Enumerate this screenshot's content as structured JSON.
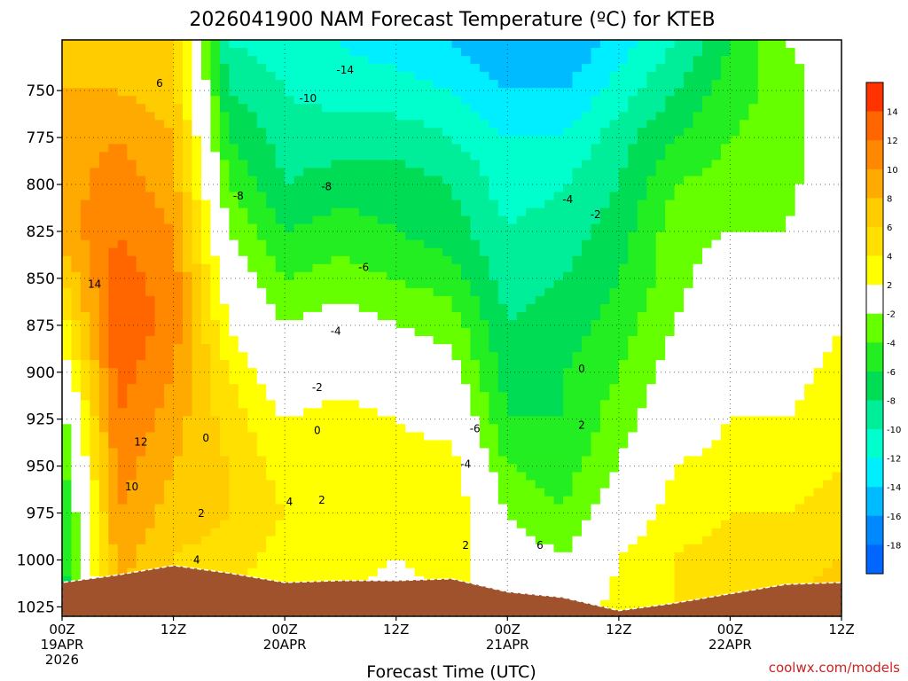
{
  "chart_data": {
    "type": "heatmap",
    "title": "2026041900 NAM Forecast Temperature (ºC) for KTEB",
    "xlabel": "Forecast Time (UTC)",
    "ylabel": "",
    "credit": "coolwx.com/models",
    "x_ticks": [
      {
        "hour": 0,
        "lines": [
          "00Z",
          "19APR",
          "2026"
        ]
      },
      {
        "hour": 12,
        "lines": [
          "12Z"
        ]
      },
      {
        "hour": 24,
        "lines": [
          "00Z",
          "20APR"
        ]
      },
      {
        "hour": 36,
        "lines": [
          "12Z"
        ]
      },
      {
        "hour": 48,
        "lines": [
          "00Z",
          "21APR"
        ]
      },
      {
        "hour": 60,
        "lines": [
          "12Z"
        ]
      },
      {
        "hour": 72,
        "lines": [
          "00Z",
          "22APR"
        ]
      },
      {
        "hour": 84,
        "lines": [
          "12Z"
        ]
      }
    ],
    "xlim": [
      0,
      84
    ],
    "y_ticks": [
      750,
      775,
      800,
      825,
      850,
      875,
      900,
      925,
      950,
      975,
      1000,
      1025
    ],
    "ylim": [
      723,
      1030
    ],
    "colorbar": {
      "levels": [
        14,
        12,
        10,
        8,
        6,
        4,
        2,
        -2,
        -4,
        -6,
        -8,
        -10,
        -12,
        -14,
        -16,
        -18
      ],
      "colors": [
        "#ff3300",
        "#ff6600",
        "#ff8800",
        "#ffaa00",
        "#ffcc00",
        "#ffe000",
        "#ffff00",
        "#ffffff",
        "#66ff00",
        "#22ee22",
        "#00dd55",
        "#00ee99",
        "#00ffcc",
        "#00eeff",
        "#00bbff",
        "#0088ff",
        "#0066ff"
      ]
    },
    "hours": [
      0,
      6,
      12,
      18,
      24,
      30,
      36,
      42,
      48,
      54,
      60,
      66,
      72,
      78,
      84
    ],
    "levels_mb": [
      725,
      750,
      775,
      800,
      825,
      850,
      875,
      900,
      925,
      950,
      975,
      1000,
      1025
    ],
    "temperature": [
      [
        7,
        8,
        9,
        9,
        9,
        6,
        3,
        0,
        -3,
        -5,
        -6,
        -7,
        -8
      ],
      [
        7,
        8,
        10,
        11,
        12,
        13,
        14,
        13,
        12,
        11,
        10,
        9,
        8
      ],
      [
        6,
        7,
        8,
        9,
        10,
        11,
        11,
        10,
        9,
        8,
        7,
        6,
        5
      ],
      [
        -10,
        -8,
        -6,
        -4,
        -2,
        0,
        2,
        4,
        5,
        6,
        6,
        5,
        4
      ],
      [
        -11,
        -10,
        -9,
        -8,
        -6,
        -4,
        -2,
        0,
        2,
        3,
        4,
        3,
        2
      ],
      [
        -12,
        -11,
        -9,
        -7,
        -5,
        -3,
        -1,
        1,
        3,
        4,
        4,
        3,
        2
      ],
      [
        -13,
        -11,
        -9,
        -7,
        -6,
        -4,
        -2,
        0,
        2,
        3,
        3,
        2,
        1
      ],
      [
        -14,
        -12,
        -10,
        -8,
        -7,
        -5,
        -3,
        -1,
        1,
        3,
        4,
        3,
        2
      ],
      [
        -16,
        -14,
        -12,
        -11,
        -10,
        -9,
        -8,
        -7,
        -6,
        -4,
        -2,
        0,
        1
      ],
      [
        -16,
        -14,
        -12,
        -10,
        -9,
        -8,
        -7,
        -6,
        -6,
        -5,
        -4,
        -2,
        0
      ],
      [
        -13,
        -11,
        -9,
        -8,
        -7,
        -6,
        -5,
        -4,
        -3,
        -2,
        0,
        2,
        3
      ],
      [
        -10,
        -8,
        -6,
        -4,
        -3,
        -3,
        -2,
        -1,
        0,
        2,
        3,
        4,
        4
      ],
      [
        -6,
        -5,
        -4,
        -3,
        -2,
        0,
        1,
        2,
        2,
        3,
        4,
        5,
        6
      ],
      [
        -2,
        -3,
        -3,
        -3,
        -2,
        -1,
        0,
        1,
        2,
        3,
        4,
        5,
        6
      ],
      [
        -1,
        0,
        0,
        1,
        1,
        2,
        2,
        3,
        3,
        4,
        5,
        6,
        7
      ]
    ],
    "contour_labels": [
      {
        "text": "6",
        "hour": 10.5,
        "p": 748
      },
      {
        "text": "14",
        "hour": 3.5,
        "p": 855
      },
      {
        "text": "12",
        "hour": 8.5,
        "p": 939
      },
      {
        "text": "10",
        "hour": 7.5,
        "p": 963
      },
      {
        "text": "-14",
        "hour": 30.5,
        "p": 741
      },
      {
        "text": "-10",
        "hour": 26.5,
        "p": 756
      },
      {
        "text": "-8",
        "hour": 19,
        "p": 808
      },
      {
        "text": "-8",
        "hour": 28.5,
        "p": 803
      },
      {
        "text": "-6",
        "hour": 32.5,
        "p": 846
      },
      {
        "text": "-4",
        "hour": 29.5,
        "p": 880
      },
      {
        "text": "-2",
        "hour": 27.5,
        "p": 910
      },
      {
        "text": "0",
        "hour": 27.5,
        "p": 933
      },
      {
        "text": "0",
        "hour": 15.5,
        "p": 937
      },
      {
        "text": "2",
        "hour": 15,
        "p": 977
      },
      {
        "text": "4",
        "hour": 14.5,
        "p": 1002
      },
      {
        "text": "4",
        "hour": 24.5,
        "p": 971
      },
      {
        "text": "2",
        "hour": 28,
        "p": 970
      },
      {
        "text": "-6",
        "hour": 44.5,
        "p": 932
      },
      {
        "text": "-4",
        "hour": 43.5,
        "p": 951
      },
      {
        "text": "2",
        "hour": 43.5,
        "p": 994
      },
      {
        "text": "6",
        "hour": 51.5,
        "p": 994
      },
      {
        "text": "-4",
        "hour": 54.5,
        "p": 810
      },
      {
        "text": "-2",
        "hour": 57.5,
        "p": 818
      },
      {
        "text": "0",
        "hour": 56,
        "p": 900
      },
      {
        "text": "2",
        "hour": 56,
        "p": 930
      }
    ],
    "surface_pressure_mb": [
      1012,
      1008,
      1003,
      1007,
      1012,
      1011,
      1011,
      1010,
      1017,
      1020,
      1027,
      1023,
      1018,
      1013,
      1012
    ]
  }
}
